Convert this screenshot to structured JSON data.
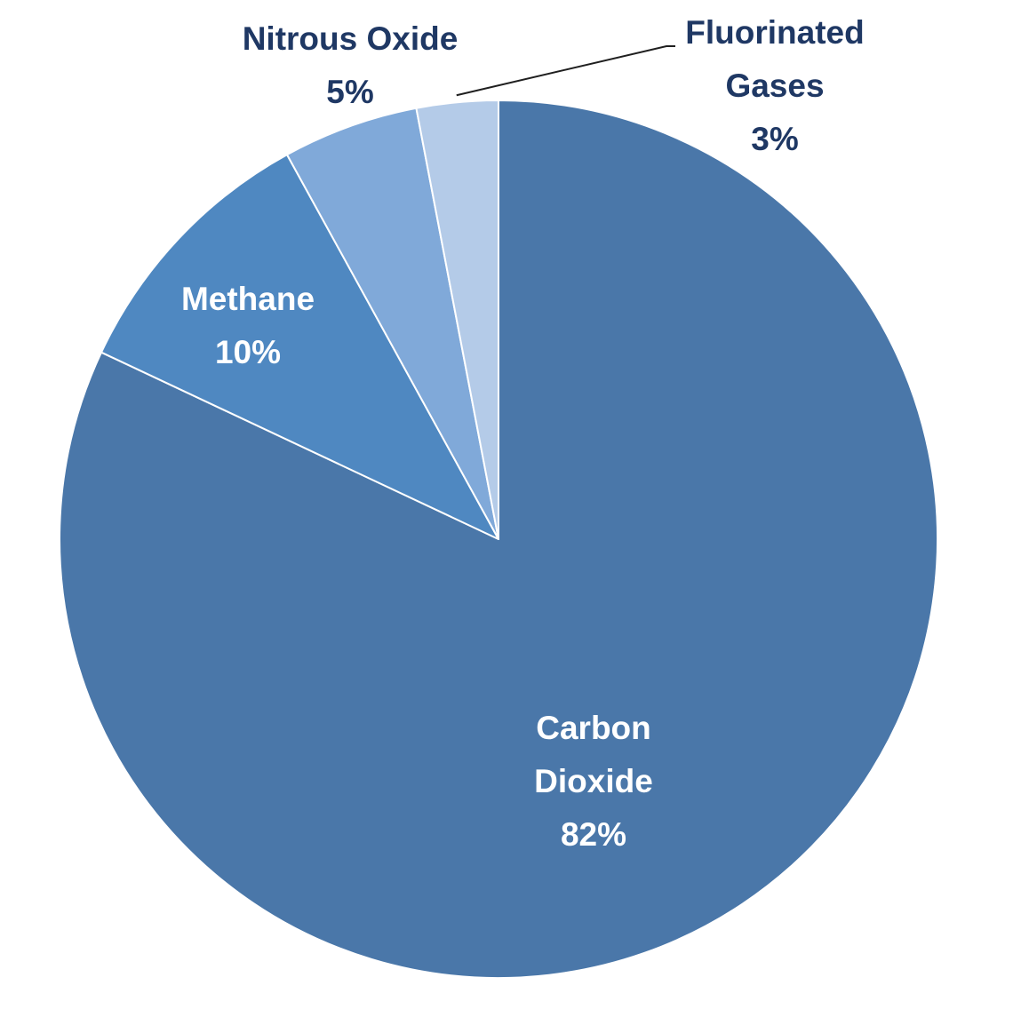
{
  "chart_data": {
    "type": "pie",
    "title": "",
    "start": "12 o'clock",
    "direction": "clockwise",
    "slices": [
      {
        "name": "Carbon Dioxide",
        "label_lines": [
          "Carbon",
          "Dioxide"
        ],
        "value_label": "82%",
        "value": 82,
        "color": "#4a77a9",
        "label_color": "#ffffff",
        "label_position": "inside"
      },
      {
        "name": "Methane",
        "label_lines": [
          "Methane"
        ],
        "value_label": "10%",
        "value": 10,
        "color": "#4f88c1",
        "label_color": "#ffffff",
        "label_position": "inside"
      },
      {
        "name": "Nitrous Oxide",
        "label_lines": [
          "Nitrous Oxide"
        ],
        "value_label": "5%",
        "value": 5,
        "color": "#80a9d9",
        "label_color": "#1f3864",
        "label_position": "outside"
      },
      {
        "name": "Fluorinated Gases",
        "label_lines": [
          "Fluorinated",
          "Gases"
        ],
        "value_label": "3%",
        "value": 3,
        "color": "#b4cbe8",
        "label_color": "#1f3864",
        "label_position": "outside-leader"
      }
    ]
  }
}
